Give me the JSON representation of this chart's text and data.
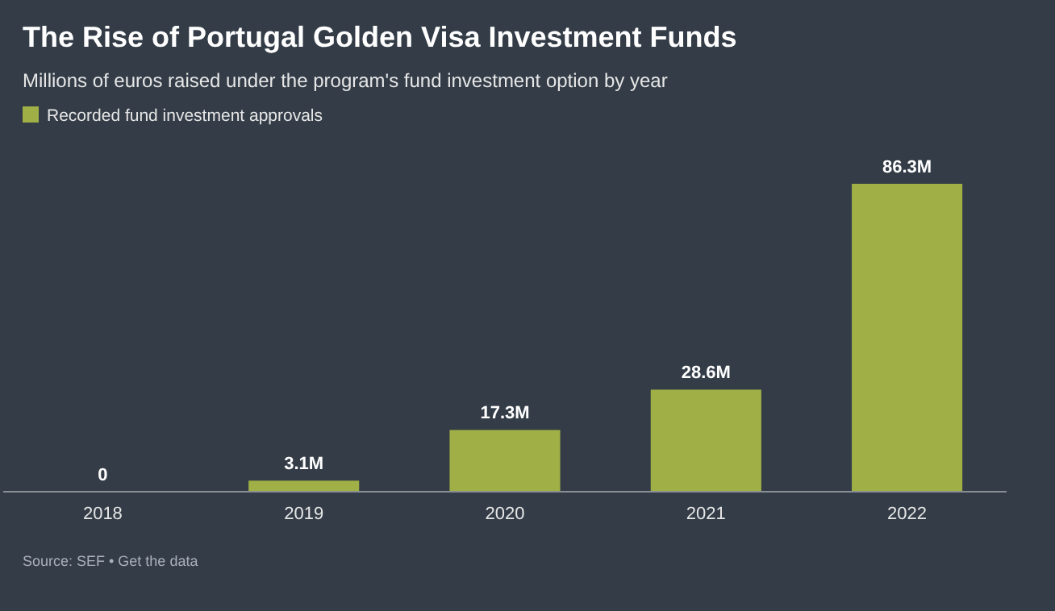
{
  "chart_data": {
    "type": "bar",
    "title": "The Rise of Portugal Golden Visa Investment Funds",
    "subtitle": "Millions of euros raised under the program's fund investment option by year",
    "categories": [
      "2018",
      "2019",
      "2020",
      "2021",
      "2022"
    ],
    "series": [
      {
        "name": "Recorded fund investment approvals",
        "color": "#a0b046",
        "values": [
          0,
          3.1,
          17.3,
          28.6,
          86.3
        ],
        "value_labels": [
          "0",
          "3.1M",
          "17.3M",
          "28.6M",
          "86.3M"
        ]
      }
    ],
    "legend": "top left",
    "grid": false,
    "annotations": [
      "Source: SEF • Get the data"
    ]
  }
}
